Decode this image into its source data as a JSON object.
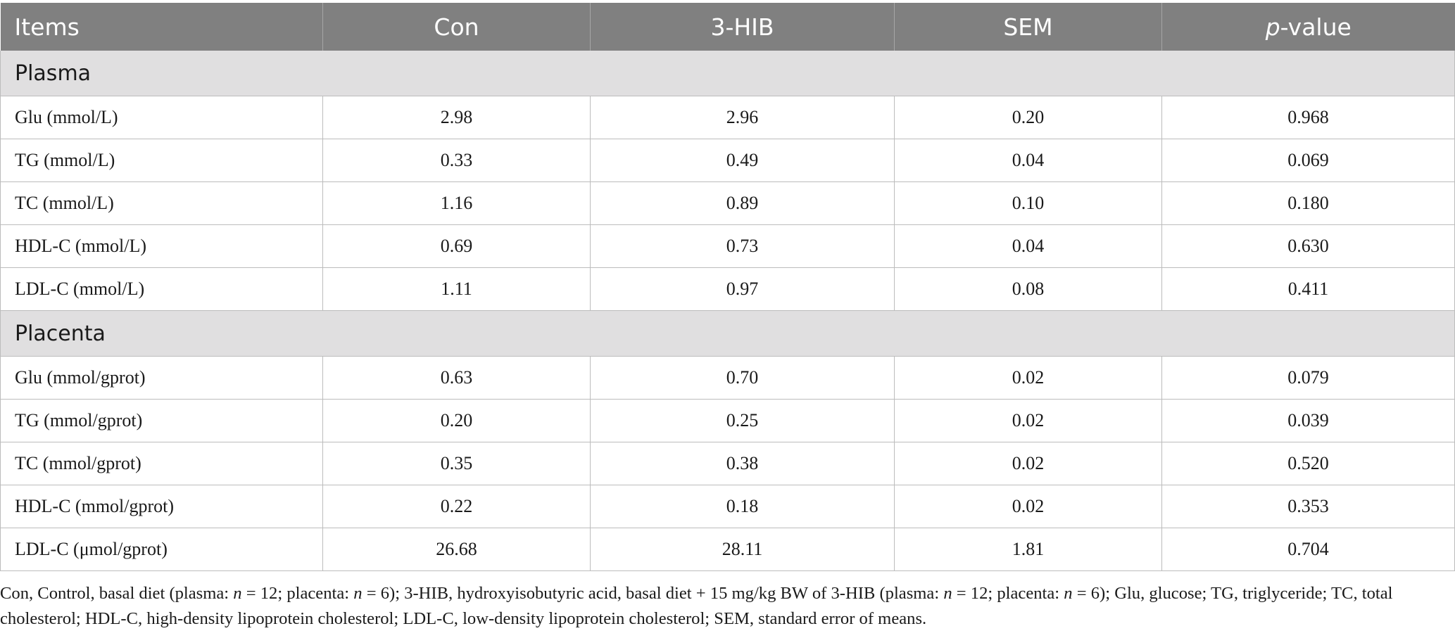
{
  "header": {
    "items": "Items",
    "con": "Con",
    "hib": "3-HIB",
    "sem": "SEM",
    "p_italic": "p",
    "p_rest": "-value"
  },
  "sections": [
    {
      "title": "Plasma",
      "rows": [
        {
          "item": "Glu (mmol/L)",
          "con": "2.98",
          "hib": "2.96",
          "sem": "0.20",
          "p": "0.968"
        },
        {
          "item": "TG (mmol/L)",
          "con": "0.33",
          "hib": "0.49",
          "sem": "0.04",
          "p": "0.069"
        },
        {
          "item": "TC (mmol/L)",
          "con": "1.16",
          "hib": "0.89",
          "sem": "0.10",
          "p": "0.180"
        },
        {
          "item": "HDL-C (mmol/L)",
          "con": "0.69",
          "hib": "0.73",
          "sem": "0.04",
          "p": "0.630"
        },
        {
          "item": "LDL-C (mmol/L)",
          "con": "1.11",
          "hib": "0.97",
          "sem": "0.08",
          "p": "0.411"
        }
      ]
    },
    {
      "title": "Placenta",
      "rows": [
        {
          "item": "Glu (mmol/gprot)",
          "con": "0.63",
          "hib": "0.70",
          "sem": "0.02",
          "p": "0.079"
        },
        {
          "item": "TG (mmol/gprot)",
          "con": "0.20",
          "hib": "0.25",
          "sem": "0.02",
          "p": "0.039"
        },
        {
          "item": "TC (mmol/gprot)",
          "con": "0.35",
          "hib": "0.38",
          "sem": "0.02",
          "p": "0.520"
        },
        {
          "item": "HDL-C (mmol/gprot)",
          "con": "0.22",
          "hib": "0.18",
          "sem": "0.02",
          "p": "0.353"
        },
        {
          "item": "LDL-C (μmol/gprot)",
          "con": "26.68",
          "hib": "28.11",
          "sem": "1.81",
          "p": "0.704"
        }
      ]
    }
  ],
  "footnote": {
    "s1": "Con, Control, basal diet (plasma: ",
    "n1": "n",
    "s2": " = 12; placenta: ",
    "n2": "n",
    "s3": " = 6); 3-HIB, hydroxyisobutyric acid, basal diet + 15 mg/kg BW of 3-HIB (plasma: ",
    "n3": "n",
    "s4": " = 12; placenta: ",
    "n4": "n",
    "s5": " = 6); Glu, glucose; TG, triglyceride; TC, total cholesterol; HDL-C, high-density lipoprotein cholesterol; LDL-C, low-density lipoprotein cholesterol; SEM, standard error of means."
  },
  "colors": {
    "header_bg": "#808080",
    "section_bg": "#e0dfe0",
    "grid": "#bcbcbc"
  }
}
